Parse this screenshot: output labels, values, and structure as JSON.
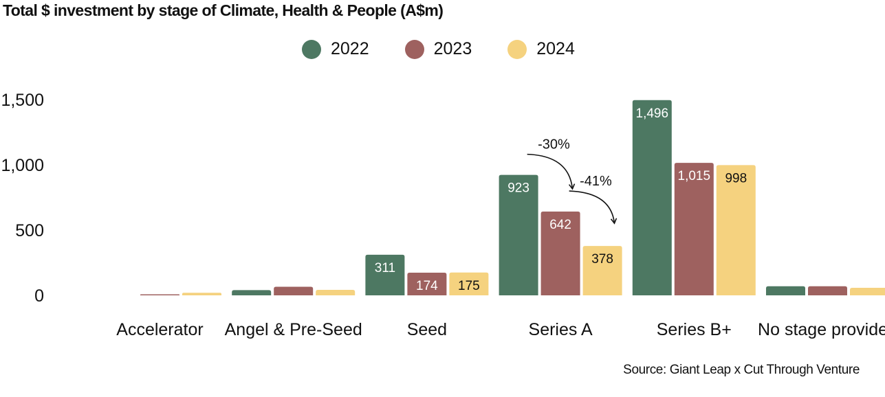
{
  "title": "Total $ investment by stage of Climate, Health & People (A$m)",
  "source": "Source: Giant Leap x Cut Through Venture",
  "chart_data": {
    "type": "bar",
    "title": "Total $ investment by stage of Climate, Health & People (A$m)",
    "xlabel": "",
    "ylabel": "",
    "ylim": [
      0,
      1500
    ],
    "yticks": [
      0,
      500,
      1000,
      1500
    ],
    "ytick_labels": [
      "0",
      "500",
      "1,000",
      "1,500"
    ],
    "grid": false,
    "legend_position": "top-center",
    "categories": [
      "Accelerator",
      "Angel & Pre-Seed",
      "Seed",
      "Series A",
      "Series B+",
      "No stage provided"
    ],
    "series": [
      {
        "name": "2022",
        "color": "#4d7862",
        "values": [
          0,
          40,
          311,
          923,
          1496,
          70
        ],
        "labels": [
          "",
          "",
          "311",
          "923",
          "1,496",
          ""
        ]
      },
      {
        "name": "2023",
        "color": "#9e615f",
        "values": [
          8,
          66,
          174,
          642,
          1015,
          70
        ],
        "labels": [
          "",
          "",
          "174",
          "642",
          "1,015",
          ""
        ]
      },
      {
        "name": "2024",
        "color": "#f5d27f",
        "values": [
          20,
          42,
          175,
          378,
          998,
          58
        ],
        "labels": [
          "",
          "",
          "175",
          "378",
          "998",
          ""
        ]
      }
    ],
    "annotations": [
      {
        "text": "-30%",
        "category": "Series A",
        "from": "2022",
        "to": "2023"
      },
      {
        "text": "-41%",
        "category": "Series A",
        "from": "2023",
        "to": "2024"
      }
    ]
  }
}
